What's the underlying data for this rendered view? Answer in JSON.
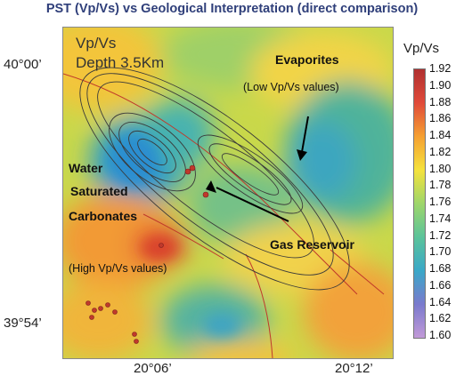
{
  "title": "PST (Vp/Vs) vs Geological Interpretation (direct comparison)",
  "map": {
    "corner_label_1": "Vp/Vs",
    "corner_label_2": "Depth 3.5Km",
    "lat_top": "40°00’",
    "lat_bottom": "39°54’",
    "lon_mid": "20°06’",
    "lon_right": "20°12’"
  },
  "annotations": {
    "evaporites": "Evaporites",
    "evaporites_sub": "(Low Vp/Vs values)",
    "water_1": "Water",
    "water_2": "Saturated",
    "water_3": "Carbonates",
    "water_sub": "(High Vp/Vs values)",
    "gas": "Gas Reservoir"
  },
  "colorbar": {
    "title": "Vp/Vs",
    "ticks": [
      "1.92",
      "1.90",
      "1.88",
      "1.86",
      "1.84",
      "1.82",
      "1.80",
      "1.78",
      "1.76",
      "1.74",
      "1.72",
      "1.70",
      "1.68",
      "1.66",
      "1.64",
      "1.62",
      "1.60"
    ],
    "colors": [
      "#b03030",
      "#e04a3a",
      "#f5a032",
      "#f5e23c",
      "#9ed66a",
      "#5bc39a",
      "#3aa8c8",
      "#7a7acd",
      "#c29ad8"
    ]
  }
}
